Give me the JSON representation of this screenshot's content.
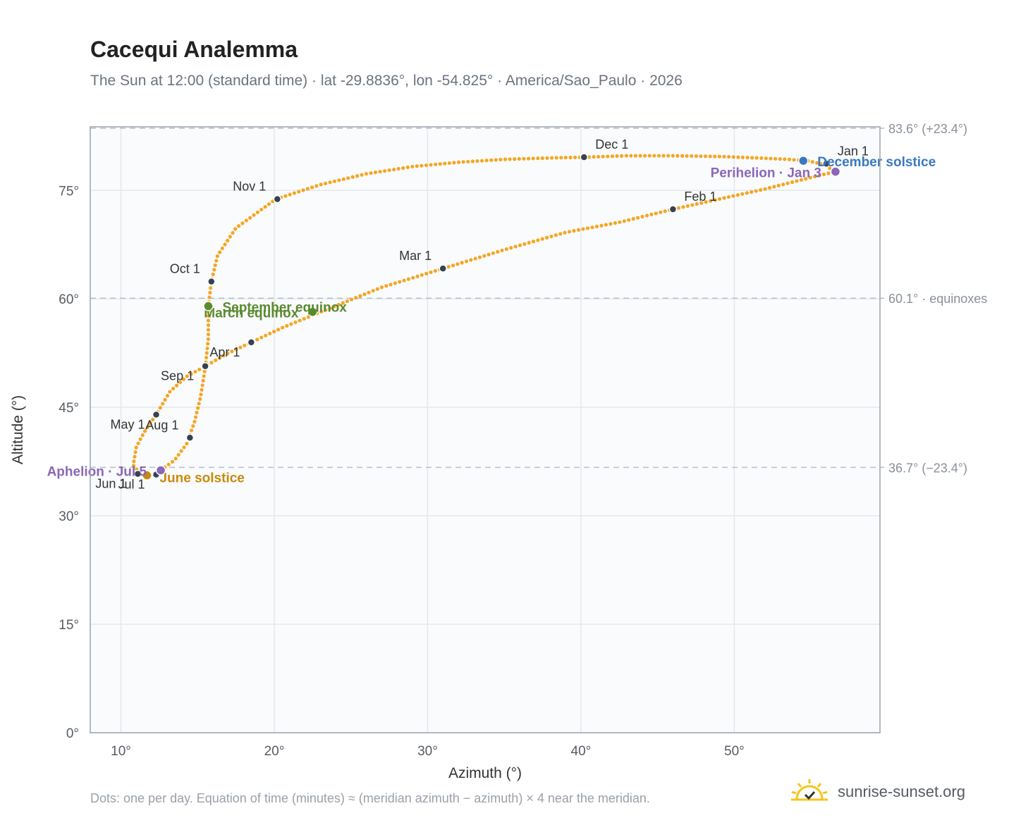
{
  "header": {
    "title": "Cacequi Analemma",
    "subtitle": "The Sun at 12:00 (standard time) · lat -29.8836°, lon -54.825° · America/Sao_Paulo · 2026"
  },
  "footer": {
    "note": "Dots: one per day. Equation of time (minutes) ≈ (meridian azimuth − azimuth) × 4 near the meridian.",
    "brand": "sunrise-sunset.org"
  },
  "colors": {
    "curve": "#f5a623",
    "month_marker": "#374151",
    "equinox": "#5a8a2e",
    "june_solstice": "#c98a0c",
    "december_solstice": "#3b78c2",
    "perihelion_aphelion": "#8b67b8",
    "grid": "#e5e7eb",
    "reference_line": "#b8c0cc"
  },
  "chart_data": {
    "type": "scatter",
    "xlabel": "Azimuth (°)",
    "ylabel": "Altitude (°)",
    "xlim": [
      8,
      59.5
    ],
    "ylim": [
      0,
      83.8
    ],
    "xticks": [
      "10°",
      "20°",
      "30°",
      "40°",
      "50°"
    ],
    "xtick_values": [
      10,
      20,
      30,
      40,
      50
    ],
    "yticks": [
      "0°",
      "15°",
      "30°",
      "45°",
      "60°",
      "75°"
    ],
    "ytick_values": [
      0,
      15,
      30,
      45,
      60,
      75
    ],
    "grid": true,
    "series": [
      {
        "points_per": "day",
        "points": [
          [
            54.8,
            79.1
          ],
          [
            55.8,
            78.6
          ],
          [
            56.6,
            77.6
          ],
          [
            55.0,
            76.8
          ],
          [
            52.0,
            75.2
          ],
          [
            49.0,
            73.8
          ],
          [
            46.0,
            72.4
          ],
          [
            42.5,
            70.6
          ],
          [
            39.0,
            69.2
          ],
          [
            35.0,
            66.8
          ],
          [
            31.0,
            64.2
          ],
          [
            27.0,
            61.6
          ],
          [
            23.5,
            58.6
          ],
          [
            20.5,
            56.0
          ],
          [
            18.5,
            54.0
          ],
          [
            16.8,
            52.3
          ],
          [
            15.6,
            50.8
          ],
          [
            14.3,
            49.3
          ],
          [
            13.2,
            47.2
          ],
          [
            12.3,
            44.0
          ],
          [
            11.5,
            41.5
          ],
          [
            11.0,
            39.5
          ],
          [
            10.8,
            37.0
          ],
          [
            11.2,
            36.0
          ],
          [
            11.7,
            35.6
          ],
          [
            12.2,
            35.7
          ],
          [
            12.6,
            36.3
          ],
          [
            13.5,
            37.7
          ],
          [
            14.3,
            40.0
          ],
          [
            14.8,
            43.0
          ],
          [
            15.2,
            46.5
          ],
          [
            15.5,
            50.5
          ],
          [
            15.7,
            54.5
          ],
          [
            15.7,
            59.0
          ],
          [
            15.9,
            62.4
          ],
          [
            16.3,
            66.0
          ],
          [
            17.5,
            69.8
          ],
          [
            20.1,
            73.8
          ],
          [
            23.0,
            75.8
          ],
          [
            26.0,
            77.3
          ],
          [
            29.0,
            78.3
          ],
          [
            32.0,
            78.9
          ],
          [
            35.0,
            79.3
          ],
          [
            38.0,
            79.5
          ],
          [
            40.2,
            79.6
          ],
          [
            43.0,
            79.8
          ],
          [
            46.0,
            79.8
          ],
          [
            49.0,
            79.7
          ],
          [
            51.5,
            79.5
          ],
          [
            53.5,
            79.3
          ],
          [
            54.8,
            79.1
          ]
        ]
      }
    ],
    "month_markers": [
      {
        "label": "Jan 1",
        "x": 56.0,
        "y": 78.7,
        "dx": 1,
        "dy": -1
      },
      {
        "label": "Feb 1",
        "x": 46.0,
        "y": 72.4,
        "dx": 1,
        "dy": -1
      },
      {
        "label": "Mar 1",
        "x": 31.0,
        "y": 64.2,
        "dx": -1,
        "dy": -1
      },
      {
        "label": "Apr 1",
        "x": 18.5,
        "y": 54.0,
        "dx": -1,
        "dy": 1
      },
      {
        "label": "May 1",
        "x": 12.3,
        "y": 44.0,
        "dx": -1,
        "dy": 1
      },
      {
        "label": "Jun 1",
        "x": 11.1,
        "y": 35.8,
        "dx": -1,
        "dy": 1
      },
      {
        "label": "Jul 1",
        "x": 12.3,
        "y": 35.7,
        "dx": -1,
        "dy": 1
      },
      {
        "label": "Aug 1",
        "x": 14.5,
        "y": 40.8,
        "dx": -1,
        "dy": -1
      },
      {
        "label": "Sep 1",
        "x": 15.5,
        "y": 50.7,
        "dx": -1,
        "dy": 1
      },
      {
        "label": "Oct 1",
        "x": 15.9,
        "y": 62.4,
        "dx": -1,
        "dy": -1
      },
      {
        "label": "Nov 1",
        "x": 20.2,
        "y": 73.8,
        "dx": -1,
        "dy": -1
      },
      {
        "label": "Dec 1",
        "x": 40.2,
        "y": 79.6,
        "dx": 1,
        "dy": -1
      }
    ],
    "events": [
      {
        "label": "March equinox",
        "x": 22.5,
        "y": 58.2,
        "color": "#5a8a2e",
        "anchor": "end",
        "dx": -20,
        "dy": 8
      },
      {
        "label": "September equinox",
        "x": 15.7,
        "y": 59.0,
        "color": "#5a8a2e",
        "anchor": "start",
        "dx": 20,
        "dy": 8
      },
      {
        "label": "June solstice",
        "x": 11.7,
        "y": 35.6,
        "color": "#c98a0c",
        "anchor": "start",
        "dx": 18,
        "dy": 10
      },
      {
        "label": "December solstice",
        "x": 54.5,
        "y": 79.1,
        "color": "#3b78c2",
        "anchor": "start",
        "dx": 20,
        "dy": 8
      },
      {
        "label": "Aphelion · Jul 5",
        "x": 12.6,
        "y": 36.3,
        "color": "#8b67b8",
        "anchor": "end",
        "dx": -20,
        "dy": 8
      },
      {
        "label": "Perihelion · Jan 3",
        "x": 56.6,
        "y": 77.6,
        "color": "#8b67b8",
        "anchor": "end",
        "dx": -20,
        "dy": 8
      }
    ],
    "reference_lines": [
      {
        "y": 83.6,
        "label": "83.6° (+23.4°)"
      },
      {
        "y": 60.1,
        "label": "60.1° · equinoxes"
      },
      {
        "y": 36.7,
        "label": "36.7° (−23.4°)"
      }
    ]
  }
}
